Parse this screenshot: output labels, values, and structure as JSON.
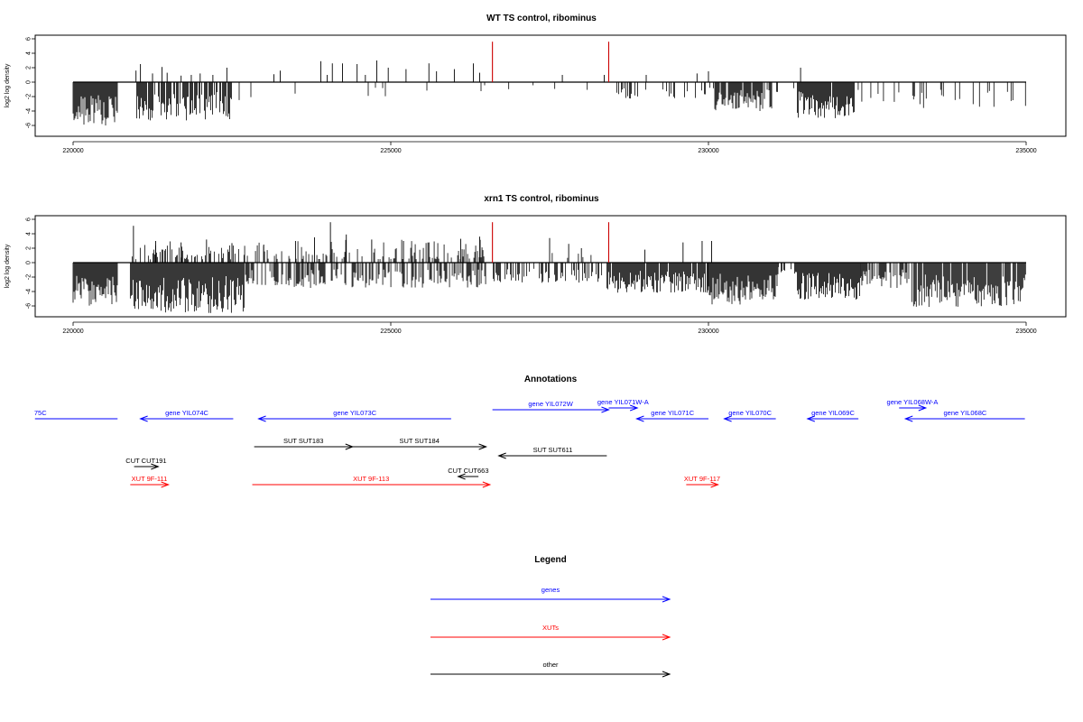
{
  "chart_data": [
    {
      "type": "bar",
      "title": "WT TS control, ribominus",
      "ylabel": "log2 log density",
      "xlabel": "",
      "xlim": [
        220000,
        235000
      ],
      "ylim": [
        -6,
        6
      ],
      "x_ticks": [
        "220000",
        "225000",
        "230000",
        "235000"
      ],
      "y_ticks": [
        "6",
        "4",
        "2",
        "0",
        "-2",
        "-4",
        "-6"
      ],
      "colors": {
        "bars": "#000000",
        "highlight": "#cc0000"
      },
      "highlight_bars": [
        {
          "x": 226600,
          "value": 5.6
        },
        {
          "x": 228430,
          "value": 5.6
        }
      ],
      "positive_peaks": [
        {
          "x": 220990,
          "value": 1.6
        },
        {
          "x": 221060,
          "value": 2.5
        },
        {
          "x": 221250,
          "value": 1.2
        },
        {
          "x": 221400,
          "value": 2.1
        },
        {
          "x": 221480,
          "value": 1.3
        },
        {
          "x": 221700,
          "value": 0.9
        },
        {
          "x": 221860,
          "value": 1.0
        },
        {
          "x": 222000,
          "value": 1.2
        },
        {
          "x": 222200,
          "value": 1.0
        },
        {
          "x": 222420,
          "value": 2.0
        },
        {
          "x": 223160,
          "value": 1.1
        },
        {
          "x": 223260,
          "value": 1.6
        },
        {
          "x": 223900,
          "value": 2.9
        },
        {
          "x": 224000,
          "value": 1.0
        },
        {
          "x": 224080,
          "value": 2.6
        },
        {
          "x": 224240,
          "value": 2.6
        },
        {
          "x": 224470,
          "value": 2.5
        },
        {
          "x": 224600,
          "value": 1.0
        },
        {
          "x": 224780,
          "value": 3.0
        },
        {
          "x": 224960,
          "value": 2.0
        },
        {
          "x": 225240,
          "value": 1.8
        },
        {
          "x": 225600,
          "value": 2.6
        },
        {
          "x": 225720,
          "value": 1.5
        },
        {
          "x": 226000,
          "value": 1.8
        },
        {
          "x": 226300,
          "value": 2.6
        },
        {
          "x": 226400,
          "value": 1.3
        },
        {
          "x": 227700,
          "value": 1.0
        },
        {
          "x": 228360,
          "value": 1.0
        },
        {
          "x": 229020,
          "value": 1.0
        },
        {
          "x": 229820,
          "value": 1.2
        },
        {
          "x": 230000,
          "value": 1.5
        },
        {
          "x": 231450,
          "value": 2.0
        }
      ],
      "negative_regions": [
        {
          "x0": 220000,
          "x1": 220700,
          "min": -6.0,
          "density": 1.0
        },
        {
          "x0": 221000,
          "x1": 222500,
          "min": -5.3,
          "density": 0.75
        },
        {
          "x0": 222500,
          "x1": 225000,
          "min": -2.6,
          "density": 0.08
        },
        {
          "x0": 225000,
          "x1": 226500,
          "min": -1.4,
          "density": 0.04
        },
        {
          "x0": 226700,
          "x1": 228300,
          "min": -1.2,
          "density": 0.07
        },
        {
          "x0": 228500,
          "x1": 230100,
          "min": -2.4,
          "density": 0.18
        },
        {
          "x0": 230100,
          "x1": 231000,
          "min": -4.0,
          "density": 0.85
        },
        {
          "x0": 231000,
          "x1": 231350,
          "min": -1.5,
          "density": 0.15
        },
        {
          "x0": 231400,
          "x1": 232300,
          "min": -5.0,
          "density": 0.95
        },
        {
          "x0": 232300,
          "x1": 233200,
          "min": -2.8,
          "density": 0.18
        },
        {
          "x0": 233200,
          "x1": 235000,
          "min": -3.6,
          "density": 0.2
        }
      ]
    },
    {
      "type": "bar",
      "title": "xrn1 TS control, ribominus",
      "ylabel": "log2 log density",
      "xlabel": "",
      "xlim": [
        220000,
        235000
      ],
      "ylim": [
        -6,
        6
      ],
      "x_ticks": [
        "220000",
        "225000",
        "230000",
        "235000"
      ],
      "y_ticks": [
        "6",
        "4",
        "2",
        "0",
        "-2",
        "-4",
        "-6"
      ],
      "colors": {
        "bars": "#000000",
        "highlight": "#cc0000"
      },
      "highlight_bars": [
        {
          "x": 226600,
          "value": 5.6
        },
        {
          "x": 228430,
          "value": 5.6
        }
      ],
      "positive_peaks": [
        {
          "x": 220950,
          "value": 5.1
        },
        {
          "x": 221300,
          "value": 3.0
        },
        {
          "x": 221700,
          "value": 2.8
        },
        {
          "x": 222100,
          "value": 3.2
        },
        {
          "x": 222500,
          "value": 2.7
        },
        {
          "x": 223000,
          "value": 2.5
        },
        {
          "x": 223500,
          "value": 3.0
        },
        {
          "x": 223800,
          "value": 3.5
        },
        {
          "x": 224050,
          "value": 5.6
        },
        {
          "x": 224300,
          "value": 3.9
        },
        {
          "x": 224700,
          "value": 3.2
        },
        {
          "x": 225200,
          "value": 3.0
        },
        {
          "x": 225600,
          "value": 2.8
        },
        {
          "x": 226100,
          "value": 3.3
        },
        {
          "x": 226400,
          "value": 3.6
        },
        {
          "x": 227500,
          "value": 3.4
        },
        {
          "x": 227800,
          "value": 2.6
        },
        {
          "x": 228000,
          "value": 2.0
        },
        {
          "x": 229000,
          "value": 1.8
        },
        {
          "x": 229600,
          "value": 2.8
        },
        {
          "x": 229900,
          "value": 3.0
        },
        {
          "x": 230050,
          "value": 3.0
        }
      ],
      "positive_regions": [
        {
          "x0": 220900,
          "x1": 222700,
          "max": 3.0,
          "density": 0.45
        },
        {
          "x0": 222700,
          "x1": 226500,
          "max": 3.2,
          "density": 0.35
        },
        {
          "x0": 227200,
          "x1": 228200,
          "max": 2.0,
          "density": 0.12
        }
      ],
      "negative_regions": [
        {
          "x0": 220000,
          "x1": 220700,
          "min": -6.0,
          "density": 1.0
        },
        {
          "x0": 220900,
          "x1": 222700,
          "min": -7.0,
          "density": 1.0
        },
        {
          "x0": 222700,
          "x1": 226500,
          "min": -3.5,
          "density": 0.55
        },
        {
          "x0": 226600,
          "x1": 228400,
          "min": -2.8,
          "density": 0.5
        },
        {
          "x0": 228400,
          "x1": 230000,
          "min": -4.2,
          "density": 0.9
        },
        {
          "x0": 230000,
          "x1": 231100,
          "min": -5.8,
          "density": 1.0
        },
        {
          "x0": 231100,
          "x1": 231400,
          "min": -2.0,
          "density": 0.3
        },
        {
          "x0": 231400,
          "x1": 232400,
          "min": -5.2,
          "density": 1.0
        },
        {
          "x0": 232400,
          "x1": 233200,
          "min": -3.5,
          "density": 0.45
        },
        {
          "x0": 233200,
          "x1": 235000,
          "min": -6.2,
          "density": 0.9
        }
      ]
    }
  ],
  "annotations": {
    "title": "Annotations",
    "xlim": [
      220000,
      235000
    ],
    "features": [
      {
        "label": "75C",
        "x0": 219400,
        "x1": 220700,
        "dir": "none",
        "color": "#0000ff",
        "row": 2,
        "label_at": "left"
      },
      {
        "label": "gene YIL074C",
        "x0": 221060,
        "x1": 222520,
        "dir": "left",
        "color": "#0000ff",
        "row": 2
      },
      {
        "label": "gene YIL073C",
        "x0": 222920,
        "x1": 225950,
        "dir": "left",
        "color": "#0000ff",
        "row": 2
      },
      {
        "label": "gene YIL072W",
        "x0": 226600,
        "x1": 228430,
        "dir": "right",
        "color": "#0000ff",
        "row": 1
      },
      {
        "label": "gene YIL071W-A",
        "x0": 228430,
        "x1": 228880,
        "dir": "right",
        "color": "#0000ff",
        "row": 0
      },
      {
        "label": "gene YIL071C",
        "x0": 228870,
        "x1": 230000,
        "dir": "left",
        "color": "#0000ff",
        "row": 2
      },
      {
        "label": "gene YIL070C",
        "x0": 230250,
        "x1": 231060,
        "dir": "left",
        "color": "#0000ff",
        "row": 2
      },
      {
        "label": "gene YIL069C",
        "x0": 231560,
        "x1": 232360,
        "dir": "left",
        "color": "#0000ff",
        "row": 2
      },
      {
        "label": "gene YIL068W-A",
        "x0": 233000,
        "x1": 233420,
        "dir": "right",
        "color": "#0000ff",
        "row": 0
      },
      {
        "label": "gene YIL068C",
        "x0": 233100,
        "x1": 234980,
        "dir": "left",
        "color": "#0000ff",
        "row": 2
      },
      {
        "label": "SUT SUT183",
        "x0": 222850,
        "x1": 224400,
        "dir": "right",
        "color": "#000000",
        "row": 3
      },
      {
        "label": "SUT SUT184",
        "x0": 224400,
        "x1": 226500,
        "dir": "right",
        "color": "#000000",
        "row": 3
      },
      {
        "label": "SUT SUT611",
        "x0": 226700,
        "x1": 228400,
        "dir": "left",
        "color": "#000000",
        "row": 4
      },
      {
        "label": "CUT CUT191",
        "x0": 220960,
        "x1": 221340,
        "dir": "right",
        "color": "#000000",
        "row": 5
      },
      {
        "label": "CUT CUT663",
        "x0": 226060,
        "x1": 226380,
        "dir": "left",
        "color": "#000000",
        "row": 6
      },
      {
        "label": "XUT 9F-111",
        "x0": 220900,
        "x1": 221500,
        "dir": "right",
        "color": "#ff0000",
        "row": 7
      },
      {
        "label": "XUT 9F-113",
        "x0": 222820,
        "x1": 226560,
        "dir": "right",
        "color": "#ff0000",
        "row": 7
      },
      {
        "label": "XUT 9F-117",
        "x0": 229650,
        "x1": 230150,
        "dir": "right",
        "color": "#ff0000",
        "row": 7
      }
    ]
  },
  "legend": {
    "title": "Legend",
    "items": [
      {
        "label": "genes",
        "color": "#0000ff"
      },
      {
        "label": "XUTs",
        "color": "#ff0000"
      },
      {
        "label": "other",
        "color": "#000000"
      }
    ]
  }
}
